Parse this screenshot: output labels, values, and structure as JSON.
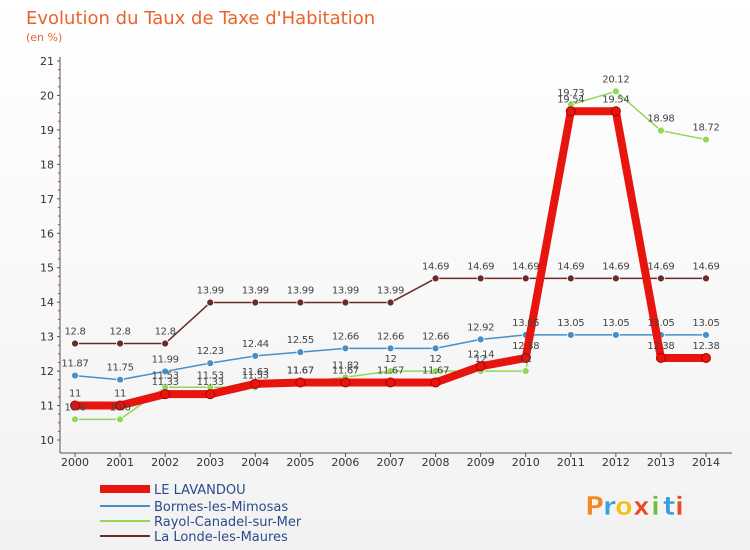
{
  "header": {
    "title": "Evolution du Taux de Taxe d'Habitation",
    "unit": "(en %)"
  },
  "brand": {
    "letters": [
      "P",
      "r",
      "o",
      "x",
      "i",
      "t",
      "i"
    ],
    "colors": [
      "#f08a24",
      "#3aa0d8",
      "#f0c020",
      "#e84a2a",
      "#6cbf3c",
      "#3aa0d8",
      "#e84a2a"
    ]
  },
  "chart_data": {
    "type": "line",
    "x": [
      "2000",
      "2001",
      "2002",
      "2003",
      "2004",
      "2005",
      "2006",
      "2007",
      "2008",
      "2009",
      "2010",
      "2011",
      "2012",
      "2013",
      "2014"
    ],
    "ylim": [
      10,
      21
    ],
    "yticks": [
      "10",
      "11",
      "12",
      "13",
      "14",
      "15",
      "16",
      "17",
      "18",
      "19",
      "20",
      "21"
    ],
    "grid": false,
    "legend_position": "bottom-left",
    "series": [
      {
        "name": "La Londe-les-Maures",
        "color": "#6b2a2a",
        "values": [
          12.8,
          12.8,
          12.8,
          13.99,
          13.99,
          13.99,
          13.99,
          13.99,
          14.69,
          14.69,
          14.69,
          14.69,
          14.69,
          14.69,
          14.69
        ],
        "labels": [
          "12.8",
          "12.8",
          "12.8",
          "13.99",
          "13.99",
          "13.99",
          "13.99",
          "13.99",
          "14.69",
          "14.69",
          "14.69",
          "14.69",
          "14.69",
          "14.69",
          "14.69"
        ]
      },
      {
        "name": "Bormes-les-Mimosas",
        "color": "#4a8fc4",
        "values": [
          11.87,
          11.75,
          11.99,
          12.23,
          12.44,
          12.55,
          12.66,
          12.66,
          12.66,
          12.92,
          13.05,
          13.05,
          13.05,
          13.05,
          13.05
        ],
        "labels": [
          "11.87",
          "11.75",
          "11.99",
          "12.23",
          "12.44",
          "12.55",
          "12.66",
          "12.66",
          "12.66",
          "12.92",
          "13.05",
          "13.05",
          "13.05",
          "13.05",
          "13.05"
        ]
      },
      {
        "name": "Rayol-Canadel-sur-Mer",
        "color": "#8fd85a",
        "values": [
          10.6,
          10.6,
          11.53,
          11.53,
          11.53,
          11.67,
          11.82,
          12,
          12,
          12,
          12,
          19.73,
          20.12,
          18.98,
          18.72
        ],
        "labels": [
          "10.6",
          "10.6",
          "11.53",
          "11.53",
          "11.53",
          "11.67",
          "11.82",
          "12",
          "12",
          "12",
          "12",
          "19.73",
          "20.12",
          "18.98",
          "18.72"
        ]
      },
      {
        "name": "LE LAVANDOU",
        "color": "#e8140e",
        "values": [
          11,
          11,
          11.33,
          11.33,
          11.63,
          11.67,
          11.67,
          11.67,
          11.67,
          12.14,
          12.38,
          19.54,
          19.54,
          12.38,
          12.38
        ],
        "labels": [
          "11",
          "11",
          "11.33",
          "11.33",
          "11.63",
          "11.67",
          "11.67",
          "11.67",
          "11.67",
          "12.14",
          "12.38",
          "19.54",
          "19.54",
          "12.38",
          "12.38"
        ]
      }
    ],
    "legend": [
      "LE LAVANDOU",
      "Bormes-les-Mimosas",
      "Rayol-Canadel-sur-Mer",
      "La Londe-les-Maures"
    ]
  }
}
